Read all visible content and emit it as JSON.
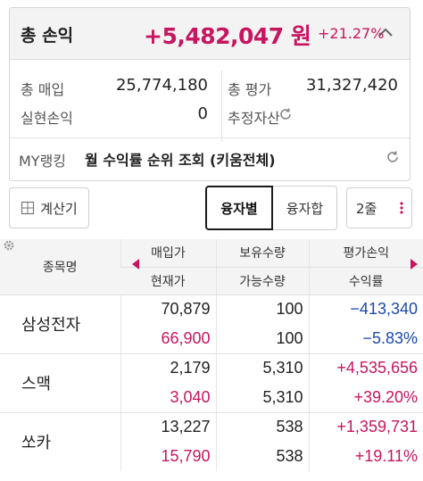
{
  "summary": {
    "total_pl_label": "총 손익",
    "total_pl_value": "+5,482,047 원",
    "total_pl_rate": "+21.27%",
    "purchase_label": "총 매입",
    "purchase_value": "25,774,180",
    "evaluation_label": "총 평가",
    "evaluation_value": "31,327,420",
    "realized_label": "실현손익",
    "realized_value": "0",
    "estimated_label": "추정자산",
    "ranking_label": "MY랭킹",
    "ranking_text": "월 수익률 순위 조회 (키움전체)"
  },
  "toolbar": {
    "calculator_label": "계산기",
    "by_stock_label": "융자별",
    "combined_label": "융자합",
    "rows_label": "2줄"
  },
  "table": {
    "header_name": "종목명",
    "header_buy": "매입가",
    "header_current": "현재가",
    "header_hold": "보유수량",
    "header_avail": "가능수량",
    "header_pl": "평가손익",
    "header_rate": "수익률",
    "rows": [
      {
        "name": "삼성전자",
        "buy": "70,879",
        "current": "66,900",
        "hold": "100",
        "avail": "100",
        "pl": "−413,340",
        "rate": "−5.83%",
        "trend": "down"
      },
      {
        "name": "스맥",
        "buy": "2,179",
        "current": "3,040",
        "hold": "5,310",
        "avail": "5,310",
        "pl": "+4,535,656",
        "rate": "+39.20%",
        "trend": "up"
      },
      {
        "name": "쏘카",
        "buy": "13,227",
        "current": "15,790",
        "hold": "538",
        "avail": "538",
        "pl": "+1,359,731",
        "rate": "+19.11%",
        "trend": "up"
      }
    ]
  },
  "colors": {
    "up": "#c7155f",
    "down": "#1b4aa8"
  },
  "icons": [
    "chevron-up-icon",
    "refresh-icon",
    "calculator-icon",
    "more-vertical-icon",
    "gear-icon",
    "triangle-left-icon",
    "triangle-right-icon"
  ]
}
